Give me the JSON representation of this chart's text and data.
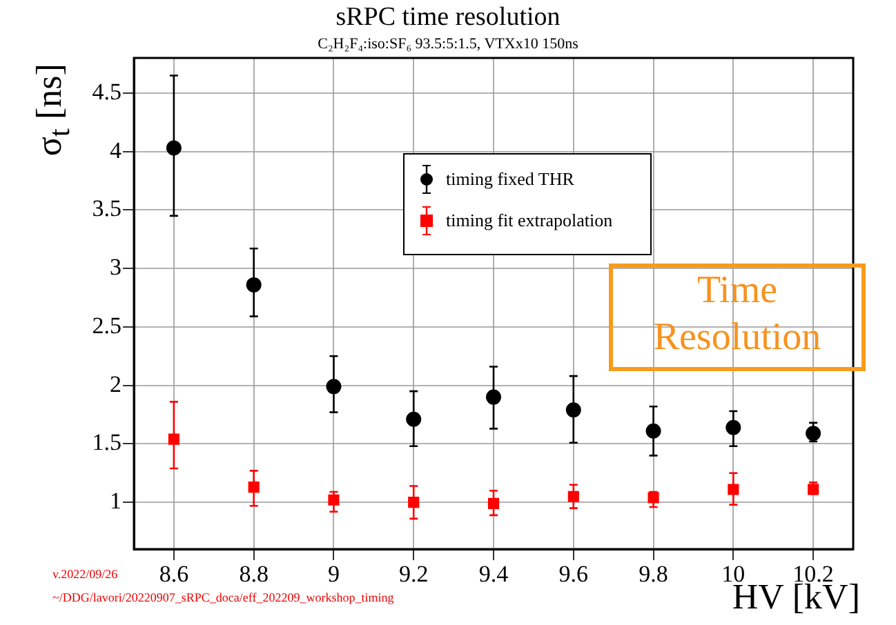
{
  "chart_data": {
    "type": "scatter",
    "title": "sRPC time resolution",
    "subtitle": "C₂H₂F₄:iso:SF₆ 93.5:5:1.5, VTXx10 150ns",
    "xlabel": "HV [kV]",
    "ylabel": "σ$_{t}$ [ns]",
    "annotations": [
      "Time Resolution",
      "v.2022/09/26",
      "~/DDG/lavori/20220907_sRPC_doca/eff_202209_workshop_timing"
    ],
    "x": [
      8.6,
      8.8,
      9.0,
      9.2,
      9.4,
      9.6,
      9.8,
      10.0,
      10.2
    ],
    "series": [
      {
        "name": "timing fixed THR",
        "color": "#000000",
        "marker": "circle",
        "values": [
          4.03,
          2.86,
          1.99,
          1.71,
          1.9,
          1.79,
          1.61,
          1.64,
          1.59
        ],
        "errors": [
          [
            3.45,
            4.65
          ],
          [
            2.59,
            3.17
          ],
          [
            1.77,
            2.25
          ],
          [
            1.48,
            1.95
          ],
          [
            1.63,
            2.16
          ],
          [
            1.51,
            2.08
          ],
          [
            1.4,
            1.82
          ],
          [
            1.48,
            1.78
          ],
          [
            1.52,
            1.68
          ]
        ]
      },
      {
        "name": "timing fit extrapolation",
        "color": "#ff0000",
        "marker": "square",
        "values": [
          1.54,
          1.13,
          1.02,
          1.0,
          0.99,
          1.05,
          1.04,
          1.11,
          1.11
        ],
        "errors": [
          [
            1.29,
            1.86
          ],
          [
            0.97,
            1.27
          ],
          [
            0.92,
            1.09
          ],
          [
            0.86,
            1.14
          ],
          [
            0.89,
            1.1
          ],
          [
            0.95,
            1.15
          ],
          [
            0.96,
            1.09
          ],
          [
            0.98,
            1.25
          ],
          [
            1.07,
            1.17
          ]
        ]
      }
    ],
    "xlim": [
      8.5,
      10.3
    ],
    "xticks": [
      8.6,
      8.8,
      9,
      9.2,
      9.4,
      9.6,
      9.8,
      10,
      10.2
    ],
    "ylim": [
      0.6,
      4.8
    ],
    "yticks": [
      1,
      1.5,
      2,
      2.5,
      3,
      3.5,
      4,
      4.5
    ],
    "grid": true,
    "legend": "top"
  }
}
